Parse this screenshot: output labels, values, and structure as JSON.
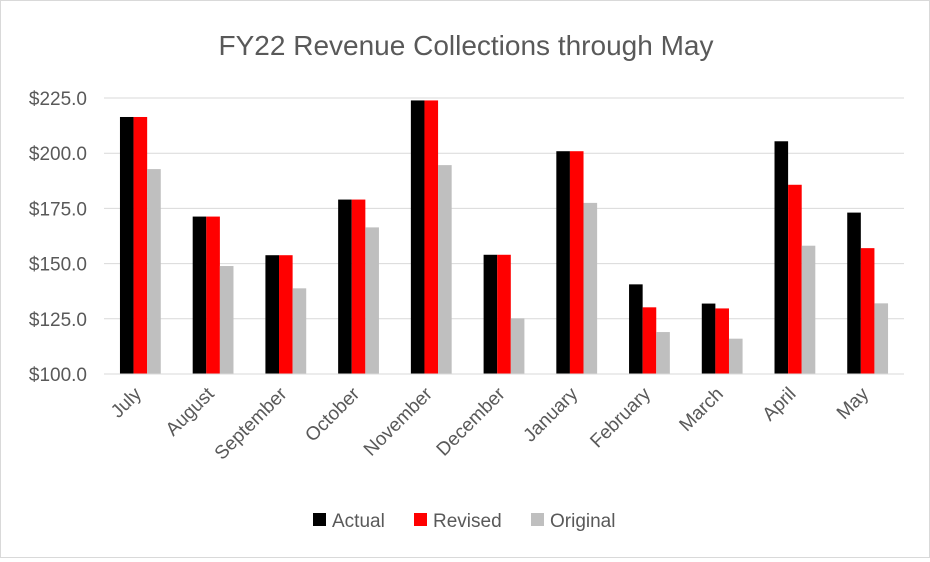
{
  "chart_data": {
    "type": "bar",
    "title": "FY22 Revenue Collections through May",
    "xlabel": "",
    "ylabel": "",
    "ylim": [
      100,
      225
    ],
    "yticks": [
      100,
      125,
      150,
      175,
      200,
      225
    ],
    "ytick_labels": [
      "$100.0",
      "$125.0",
      "$150.0",
      "$175.0",
      "$200.0",
      "$225.0"
    ],
    "grid": true,
    "legend_position": "bottom",
    "categories": [
      "July",
      "August",
      "September",
      "October",
      "November",
      "December",
      "January",
      "February",
      "March",
      "April",
      "May"
    ],
    "series": [
      {
        "name": "Actual",
        "color": "#000000",
        "values": [
          216.4,
          171.3,
          153.8,
          179.0,
          223.9,
          154.0,
          200.9,
          140.6,
          131.9,
          205.4,
          173.1
        ]
      },
      {
        "name": "Revised",
        "color": "#ff0000",
        "values": [
          216.4,
          171.3,
          153.8,
          179.0,
          223.9,
          154.0,
          200.9,
          130.2,
          129.7,
          185.7,
          157.0
        ]
      },
      {
        "name": "Original",
        "color": "#bfbfbf",
        "values": [
          192.8,
          148.9,
          138.8,
          166.4,
          194.6,
          125.2,
          177.5,
          119.0,
          116.0,
          158.1,
          132.0
        ]
      }
    ]
  }
}
